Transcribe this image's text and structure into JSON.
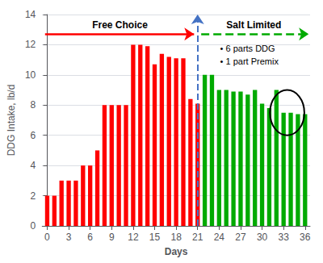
{
  "chart_data": {
    "type": "bar",
    "x": [
      0,
      1,
      2,
      3,
      4,
      5,
      6,
      7,
      8,
      9,
      10,
      11,
      12,
      13,
      14,
      15,
      16,
      17,
      18,
      19,
      20,
      21,
      22,
      23,
      24,
      25,
      26,
      27,
      28,
      29,
      30,
      31,
      32,
      33,
      34,
      35,
      36
    ],
    "values": [
      2.0,
      2.0,
      3.0,
      3.0,
      3.0,
      4.0,
      4.0,
      5.0,
      8.0,
      8.0,
      8.0,
      8.0,
      12.0,
      12.0,
      11.9,
      10.7,
      11.4,
      11.2,
      11.1,
      11.1,
      8.4,
      8.1,
      10.0,
      10.0,
      9.0,
      9.0,
      8.9,
      8.9,
      8.7,
      9.0,
      8.1,
      7.8,
      9.0,
      7.5,
      7.5,
      7.4,
      7.4
    ],
    "colors": [
      "#FF0000",
      "#FF0000",
      "#FF0000",
      "#FF0000",
      "#FF0000",
      "#FF0000",
      "#FF0000",
      "#FF0000",
      "#FF0000",
      "#FF0000",
      "#FF0000",
      "#FF0000",
      "#FF0000",
      "#FF0000",
      "#FF0000",
      "#FF0000",
      "#FF0000",
      "#FF0000",
      "#FF0000",
      "#FF0000",
      "#FF0000",
      "#FF0000",
      "#00AA00",
      "#00AA00",
      "#00AA00",
      "#00AA00",
      "#00AA00",
      "#00AA00",
      "#00AA00",
      "#00AA00",
      "#00AA00",
      "#00AA00",
      "#00AA00",
      "#00AA00",
      "#00AA00",
      "#00AA00",
      "#00AA00"
    ],
    "xlabel": "Days",
    "ylabel": "DDG Intake, lb/d",
    "xlim": [
      -0.7,
      36.7
    ],
    "xticks": [
      0,
      3,
      6,
      9,
      12,
      15,
      18,
      21,
      24,
      27,
      30,
      33,
      36
    ],
    "ylim": [
      0,
      14
    ],
    "yticks": [
      0,
      2,
      4,
      6,
      8,
      10,
      12,
      14
    ],
    "grid": true,
    "annotations": [
      "Free Choice",
      "Salt Limited",
      "• 6 parts DDG",
      "• 1 part Premix"
    ],
    "vline": {
      "value": 21,
      "color": "#4472C4",
      "line_style": "dashed"
    },
    "arrows": [
      {
        "y": 12.7,
        "color": "#FF0000",
        "line_style": "solid"
      },
      {
        "y": 12.7,
        "color": "#00AA00",
        "line_style": "dashed"
      }
    ],
    "highlight": {
      "x": 33.5,
      "y": 7.5,
      "width": 4.8,
      "height": 3.0
    }
  }
}
